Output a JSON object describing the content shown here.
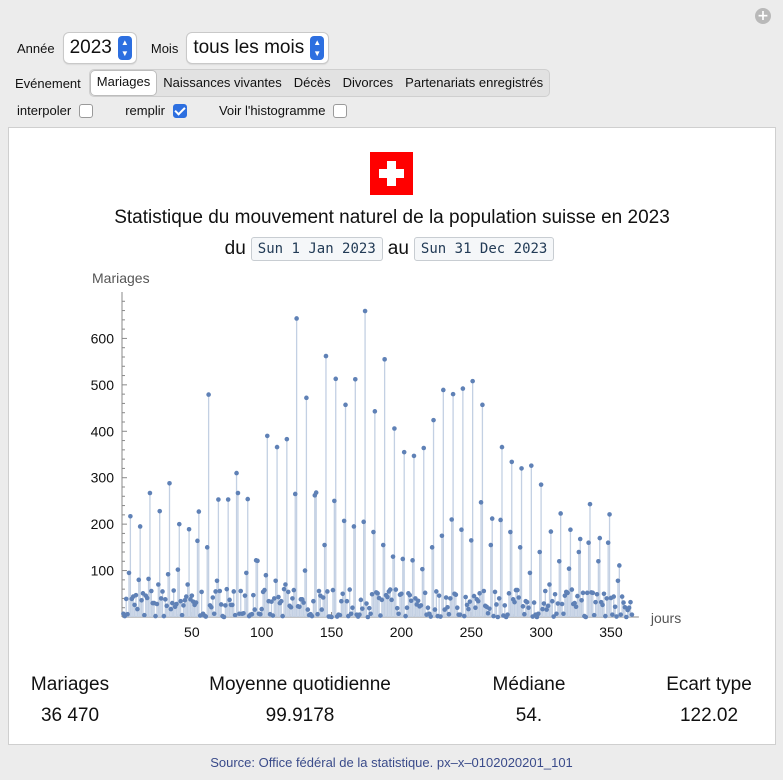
{
  "controls": {
    "annee_label": "Année",
    "annee_value": "2023",
    "mois_label": "Mois",
    "mois_value": "tous les mois",
    "evenement_label": "Evénement",
    "tabs": [
      "Mariages",
      "Naissances vivantes",
      "Décès",
      "Divorces",
      "Partenariats enregistrés"
    ],
    "active_tab": "Mariages",
    "interpoler_label": "interpoler",
    "interpoler_checked": false,
    "remplir_label": "remplir",
    "remplir_checked": true,
    "histogram_label": "Voir l'histogramme",
    "histogram_checked": false
  },
  "panel": {
    "title": "Statistique du mouvement naturel de la population suisse en 2023",
    "du": "du",
    "au": "au",
    "date_from": "Sun 1 Jan 2023",
    "date_to": "Sun 31 Dec 2023"
  },
  "stats": [
    {
      "label": "Mariages",
      "value": "36 470"
    },
    {
      "label": "Moyenne quotidienne",
      "value": "99.9178"
    },
    {
      "label": "Médiane",
      "value": "54."
    },
    {
      "label": "Ecart type",
      "value": "122.02"
    }
  ],
  "source": "Source: Office fédéral de la statistique. px–x–0102020201_101",
  "colors": {
    "accent": "#2d6fe0",
    "point": "#5f81b6",
    "stem": "#c3d0e3",
    "flag": "#ff0000"
  },
  "chart_data": {
    "type": "scatter",
    "ylabel": "Mariages",
    "xlabel": "jours",
    "xlim": [
      0,
      370
    ],
    "ylim": [
      0,
      700
    ],
    "xticks": [
      50,
      100,
      150,
      200,
      250,
      300,
      350
    ],
    "yticks": [
      100,
      200,
      300,
      400,
      500,
      600
    ],
    "filled": true,
    "weekly_peaks": [
      [
        6,
        217
      ],
      [
        13,
        195
      ],
      [
        20,
        267
      ],
      [
        27,
        228
      ],
      [
        34,
        288
      ],
      [
        41,
        200
      ],
      [
        48,
        189
      ],
      [
        55,
        227
      ],
      [
        62,
        479
      ],
      [
        69,
        253
      ],
      [
        76,
        253
      ],
      [
        83,
        267
      ],
      [
        90,
        254
      ],
      [
        97,
        121
      ],
      [
        104,
        390
      ],
      [
        111,
        366
      ],
      [
        118,
        383
      ],
      [
        125,
        643
      ],
      [
        132,
        472
      ],
      [
        139,
        268
      ],
      [
        146,
        562
      ],
      [
        153,
        513
      ],
      [
        160,
        457
      ],
      [
        167,
        512
      ],
      [
        174,
        659
      ],
      [
        181,
        443
      ],
      [
        188,
        555
      ],
      [
        195,
        406
      ],
      [
        202,
        355
      ],
      [
        209,
        347
      ],
      [
        216,
        364
      ],
      [
        223,
        424
      ],
      [
        230,
        489
      ],
      [
        237,
        480
      ],
      [
        244,
        492
      ],
      [
        251,
        508
      ],
      [
        258,
        457
      ],
      [
        265,
        212
      ],
      [
        272,
        366
      ],
      [
        279,
        334
      ],
      [
        286,
        320
      ],
      [
        293,
        326
      ],
      [
        300,
        285
      ],
      [
        307,
        184
      ],
      [
        314,
        223
      ],
      [
        321,
        188
      ],
      [
        328,
        168
      ],
      [
        335,
        243
      ],
      [
        342,
        170
      ],
      [
        349,
        221
      ],
      [
        356,
        111
      ],
      [
        363,
        20
      ]
    ],
    "weekly_mid": [
      [
        5,
        95
      ],
      [
        12,
        80
      ],
      [
        19,
        82
      ],
      [
        26,
        70
      ],
      [
        33,
        92
      ],
      [
        40,
        102
      ],
      [
        47,
        70
      ],
      [
        54,
        164
      ],
      [
        61,
        150
      ],
      [
        68,
        78
      ],
      [
        75,
        60
      ],
      [
        82,
        310
      ],
      [
        89,
        95
      ],
      [
        96,
        122
      ],
      [
        103,
        90
      ],
      [
        110,
        78
      ],
      [
        117,
        70
      ],
      [
        124,
        265
      ],
      [
        131,
        100
      ],
      [
        138,
        262
      ],
      [
        145,
        155
      ],
      [
        152,
        250
      ],
      [
        159,
        207
      ],
      [
        166,
        195
      ],
      [
        173,
        205
      ],
      [
        180,
        183
      ],
      [
        187,
        155
      ],
      [
        194,
        130
      ],
      [
        201,
        125
      ],
      [
        208,
        122
      ],
      [
        215,
        103
      ],
      [
        222,
        150
      ],
      [
        229,
        175
      ],
      [
        236,
        210
      ],
      [
        243,
        188
      ],
      [
        250,
        165
      ],
      [
        257,
        247
      ],
      [
        264,
        155
      ],
      [
        271,
        209
      ],
      [
        278,
        183
      ],
      [
        285,
        150
      ],
      [
        292,
        95
      ],
      [
        299,
        140
      ],
      [
        306,
        70
      ],
      [
        313,
        120
      ],
      [
        320,
        104
      ],
      [
        327,
        140
      ],
      [
        334,
        160
      ],
      [
        341,
        120
      ],
      [
        348,
        160
      ],
      [
        355,
        78
      ],
      [
        362,
        15
      ]
    ],
    "baseline_range": [
      0,
      60
    ]
  }
}
